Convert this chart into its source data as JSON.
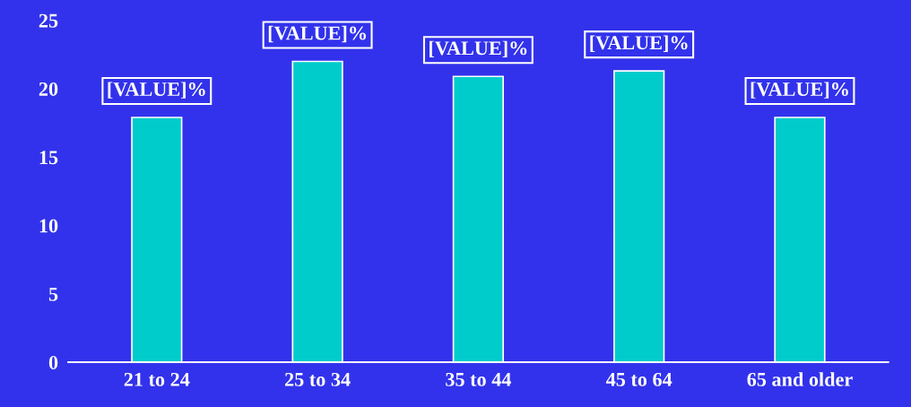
{
  "chart_data": {
    "type": "bar",
    "categories": [
      "21 to 24",
      "25 to 34",
      "35 to 44",
      "45 to 64",
      "65 and older"
    ],
    "values": [
      17.9,
      22.0,
      20.9,
      21.3,
      17.9
    ],
    "color": "#00cccc",
    "value_labels": [
      "[VALUE]%",
      "[VALUE]%",
      "[VALUE]%",
      "[VALUE]%",
      "[VALUE]%"
    ],
    "ylim": [
      0,
      25
    ],
    "yticks": [
      0,
      5,
      10,
      15,
      20,
      25
    ],
    "grid": false,
    "legend": false
  }
}
